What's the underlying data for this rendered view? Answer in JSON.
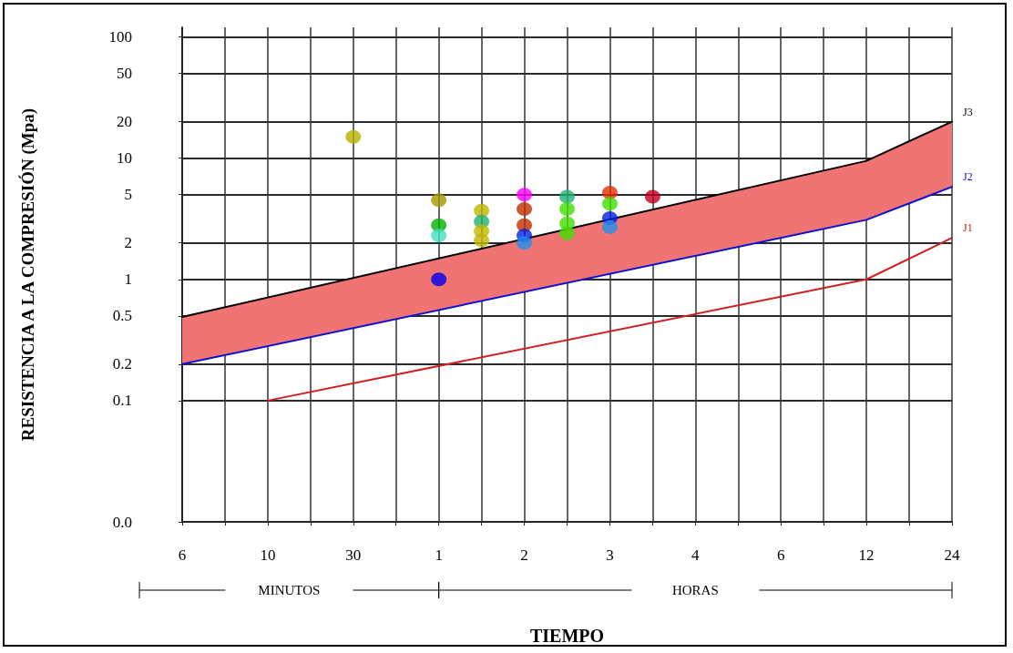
{
  "chart_data": {
    "type": "line",
    "xlabel": "TIEMPO",
    "ylabel": "RESISTENCIA A LA COMPRESIÓN (Mpa)",
    "annotations": [
      "MINUTOS",
      "HORAS"
    ],
    "log": "y",
    "grid": true,
    "legend": false,
    "categories": [
      "6",
      null,
      "10",
      null,
      "30",
      null,
      "1",
      null,
      "2",
      null,
      "3",
      null,
      "4",
      null,
      "6",
      null,
      "12",
      null,
      "24"
    ],
    "ylim": [
      0.01,
      120
    ],
    "yticks": [
      {
        "value": 0.01,
        "label": "0.0"
      },
      0.1,
      0.2,
      0.5,
      1,
      2,
      5,
      10,
      20,
      50,
      100
    ],
    "series": [
      {
        "name": "J3",
        "color": "#000000",
        "values": [
          0.49,
          null,
          null,
          null,
          null,
          null,
          null,
          null,
          null,
          null,
          null,
          null,
          null,
          null,
          null,
          null,
          9.5,
          null,
          20
        ],
        "lower": [
          0.2,
          null,
          null,
          null,
          null,
          null,
          null,
          null,
          null,
          null,
          null,
          null,
          null,
          null,
          null,
          null,
          3.1,
          null,
          5.8
        ],
        "upper": [
          0.49,
          null,
          null,
          null,
          null,
          null,
          null,
          null,
          null,
          null,
          null,
          null,
          null,
          null,
          null,
          null,
          9.5,
          null,
          20
        ]
      },
      {
        "name": "J2",
        "color": "#1010d0",
        "values": [
          0.2,
          null,
          null,
          null,
          null,
          null,
          null,
          null,
          null,
          null,
          null,
          null,
          null,
          null,
          null,
          null,
          3.1,
          null,
          5.8
        ]
      },
      {
        "name": "J1",
        "color": "#d02020",
        "values": [
          null,
          null,
          0.1,
          null,
          null,
          null,
          null,
          null,
          null,
          null,
          null,
          null,
          null,
          null,
          null,
          null,
          1.0,
          null,
          2.2
        ]
      },
      {
        "type": "scatter",
        "values": [
          null,
          null,
          null,
          null,
          15,
          null,
          4.5,
          3.7,
          5.0,
          4.8,
          5.2,
          4.8,
          null,
          null,
          null,
          null,
          null,
          null,
          null
        ],
        "colors": [
          null,
          null,
          null,
          null,
          "#b8b000",
          null,
          "#a09800",
          "#c0b800",
          "#ff00ff",
          "#20b070",
          "#e03000",
          "#c00020",
          null,
          null,
          null,
          null,
          null,
          null,
          null
        ]
      },
      {
        "type": "scatter",
        "values": [
          null,
          null,
          null,
          null,
          null,
          null,
          2.8,
          3.0,
          3.8,
          3.8,
          null,
          null,
          null,
          null,
          null,
          null,
          null,
          null,
          null
        ],
        "colors": [
          null,
          null,
          null,
          null,
          null,
          null,
          "#00b000",
          "#20b070",
          "#c03000",
          "#40e000",
          null,
          null,
          null,
          null,
          null,
          null,
          null,
          null,
          null
        ]
      },
      {
        "type": "scatter",
        "values": [
          null,
          null,
          null,
          null,
          null,
          null,
          2.3,
          2.5,
          2.8,
          2.9,
          4.2,
          null,
          null,
          null,
          null,
          null,
          null,
          null,
          null
        ],
        "colors": [
          null,
          null,
          null,
          null,
          null,
          null,
          "#40e0c0",
          "#c0b800",
          "#c03000",
          "#40e000",
          "#40e000",
          null,
          null,
          null,
          null,
          null,
          null,
          null,
          null
        ]
      },
      {
        "type": "scatter",
        "values": [
          null,
          null,
          null,
          null,
          null,
          null,
          1.0,
          2.1,
          2.3,
          2.4,
          3.2,
          null,
          null,
          null,
          null,
          null,
          null,
          null,
          null
        ],
        "colors": [
          null,
          null,
          null,
          null,
          null,
          null,
          "#0000f0",
          "#c0b800",
          "#0020e0",
          "#40e000",
          "#0020e0",
          null,
          null,
          null,
          null,
          null,
          null,
          null,
          null
        ]
      },
      {
        "type": "scatter",
        "values": [
          null,
          null,
          null,
          null,
          null,
          null,
          null,
          null,
          2.0,
          null,
          2.7,
          null,
          null,
          null,
          null,
          null,
          null,
          null,
          null
        ],
        "colors": [
          null,
          null,
          null,
          null,
          null,
          null,
          null,
          null,
          "#2090f0",
          null,
          "#2090f0",
          null,
          null,
          null,
          null,
          null,
          null,
          null,
          null
        ]
      }
    ]
  }
}
